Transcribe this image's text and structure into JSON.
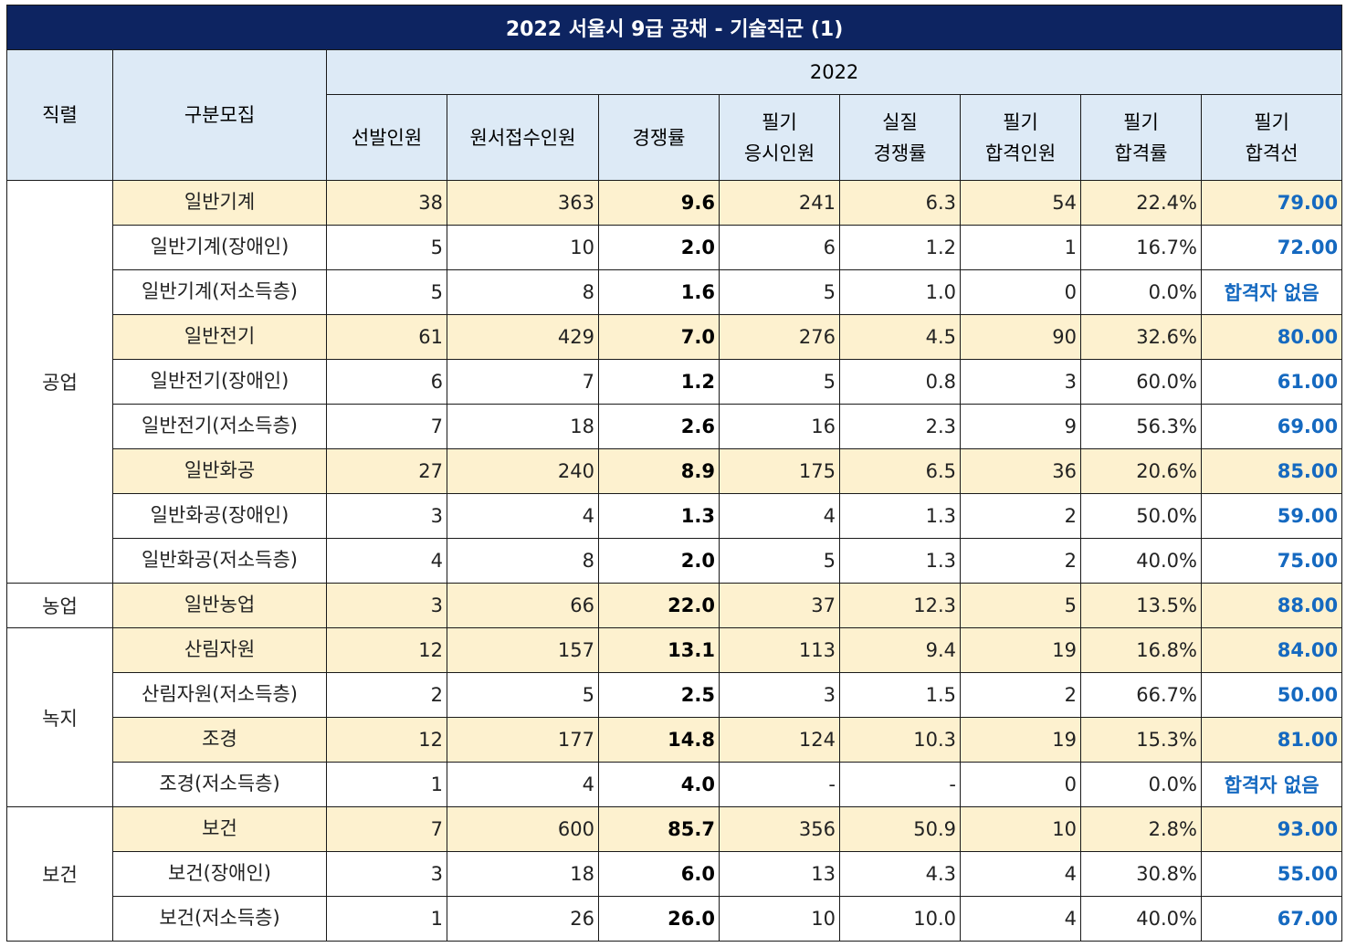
{
  "title": "2022 서울시 9급 공채 - 기술직군 (1)",
  "header": {
    "col_jik": "직렬",
    "col_gubun": "구분모집",
    "year": "2022",
    "cols": [
      [
        "선발인원"
      ],
      [
        "원서접수인원"
      ],
      [
        "경쟁률"
      ],
      [
        "필기",
        "응시인원"
      ],
      [
        "실질",
        "경쟁률"
      ],
      [
        "필기",
        "합격인원"
      ],
      [
        "필기",
        "합격률"
      ],
      [
        "필기",
        "합격선"
      ]
    ]
  },
  "groups": [
    {
      "name": "공업",
      "rows": [
        0,
        1,
        2,
        3,
        4,
        5,
        6,
        7,
        8
      ]
    },
    {
      "name": "농업",
      "rows": [
        9
      ]
    },
    {
      "name": "녹지",
      "rows": [
        10,
        11,
        12,
        13
      ]
    },
    {
      "name": "보건",
      "rows": [
        14,
        15,
        16
      ]
    }
  ],
  "rows": [
    {
      "name": "일반기계",
      "highlight": true,
      "v": [
        "38",
        "363",
        "9.6",
        "241",
        "6.3",
        "54",
        "22.4%",
        "79.00"
      ]
    },
    {
      "name": "일반기계(장애인)",
      "highlight": false,
      "v": [
        "5",
        "10",
        "2.0",
        "6",
        "1.2",
        "1",
        "16.7%",
        "72.00"
      ]
    },
    {
      "name": "일반기계(저소득층)",
      "highlight": false,
      "v": [
        "5",
        "8",
        "1.6",
        "5",
        "1.0",
        "0",
        "0.0%",
        "합격자 없음"
      ]
    },
    {
      "name": "일반전기",
      "highlight": true,
      "v": [
        "61",
        "429",
        "7.0",
        "276",
        "4.5",
        "90",
        "32.6%",
        "80.00"
      ]
    },
    {
      "name": "일반전기(장애인)",
      "highlight": false,
      "v": [
        "6",
        "7",
        "1.2",
        "5",
        "0.8",
        "3",
        "60.0%",
        "61.00"
      ]
    },
    {
      "name": "일반전기(저소득층)",
      "highlight": false,
      "v": [
        "7",
        "18",
        "2.6",
        "16",
        "2.3",
        "9",
        "56.3%",
        "69.00"
      ]
    },
    {
      "name": "일반화공",
      "highlight": true,
      "v": [
        "27",
        "240",
        "8.9",
        "175",
        "6.5",
        "36",
        "20.6%",
        "85.00"
      ]
    },
    {
      "name": "일반화공(장애인)",
      "highlight": false,
      "v": [
        "3",
        "4",
        "1.3",
        "4",
        "1.3",
        "2",
        "50.0%",
        "59.00"
      ]
    },
    {
      "name": "일반화공(저소득층)",
      "highlight": false,
      "v": [
        "4",
        "8",
        "2.0",
        "5",
        "1.3",
        "2",
        "40.0%",
        "75.00"
      ]
    },
    {
      "name": "일반농업",
      "highlight": true,
      "v": [
        "3",
        "66",
        "22.0",
        "37",
        "12.3",
        "5",
        "13.5%",
        "88.00"
      ]
    },
    {
      "name": "산림자원",
      "highlight": true,
      "v": [
        "12",
        "157",
        "13.1",
        "113",
        "9.4",
        "19",
        "16.8%",
        "84.00"
      ]
    },
    {
      "name": "산림자원(저소득층)",
      "highlight": false,
      "v": [
        "2",
        "5",
        "2.5",
        "3",
        "1.5",
        "2",
        "66.7%",
        "50.00"
      ]
    },
    {
      "name": "조경",
      "highlight": true,
      "v": [
        "12",
        "177",
        "14.8",
        "124",
        "10.3",
        "19",
        "15.3%",
        "81.00"
      ]
    },
    {
      "name": "조경(저소득층)",
      "highlight": false,
      "v": [
        "1",
        "4",
        "4.0",
        "-",
        "-",
        "0",
        "0.0%",
        "합격자 없음"
      ]
    },
    {
      "name": "보건",
      "highlight": true,
      "v": [
        "7",
        "600",
        "85.7",
        "356",
        "50.9",
        "10",
        "2.8%",
        "93.00"
      ]
    },
    {
      "name": "보건(장애인)",
      "highlight": false,
      "v": [
        "3",
        "18",
        "6.0",
        "13",
        "4.3",
        "4",
        "30.8%",
        "55.00"
      ]
    },
    {
      "name": "보건(저소득층)",
      "highlight": false,
      "v": [
        "1",
        "26",
        "26.0",
        "10",
        "10.0",
        "4",
        "40.0%",
        "67.00"
      ]
    }
  ],
  "colors": {
    "title_bg": "#0d2461",
    "header_bg": "#ddeaf6",
    "highlight_bg": "#fdf1cf",
    "cutoff_text": "#1569c0"
  }
}
